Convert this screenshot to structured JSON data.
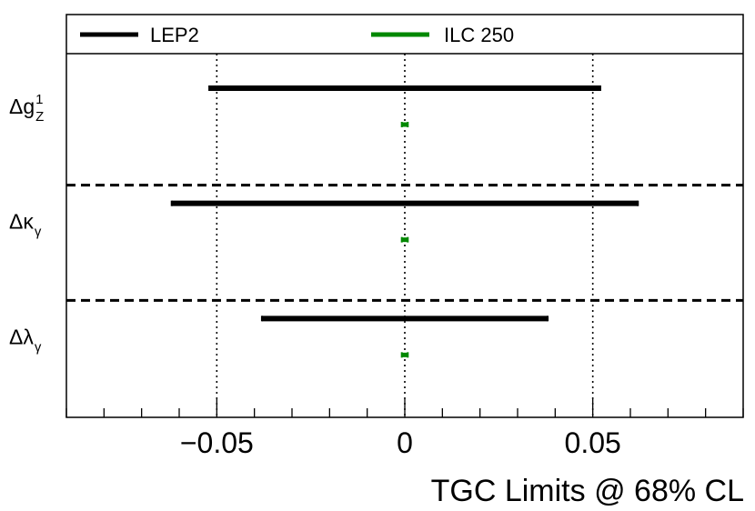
{
  "chart_data": {
    "type": "interval",
    "xlabel": "TGC Limits @ 68% CL",
    "xlim": [
      -0.09,
      0.09
    ],
    "tick_labels": [
      {
        "value": -0.05,
        "text": "−0.05"
      },
      {
        "value": 0,
        "text": "0"
      },
      {
        "value": 0.05,
        "text": "0.05"
      }
    ],
    "reference_lines": [
      -0.05,
      0,
      0.05
    ],
    "legend": {
      "position": "top",
      "entries": [
        "LEP2",
        "ILC 250"
      ]
    },
    "parameters": [
      {
        "symbol": "Δg",
        "sup": "1",
        "sub": "Z"
      },
      {
        "symbol": "Δκ",
        "sup": "",
        "sub": "γ"
      },
      {
        "symbol": "Δλ",
        "sup": "",
        "sub": "γ"
      }
    ],
    "series": [
      {
        "name": "LEP2",
        "color": "#000000",
        "intervals": [
          [
            -0.052,
            0.052
          ],
          [
            -0.062,
            0.062
          ],
          [
            -0.038,
            0.038
          ]
        ]
      },
      {
        "name": "ILC 250",
        "color": "#008800",
        "intervals": [
          [
            -0.0008,
            0.0008
          ],
          [
            -0.0008,
            0.0008
          ],
          [
            -0.0008,
            0.0008
          ]
        ]
      }
    ]
  }
}
